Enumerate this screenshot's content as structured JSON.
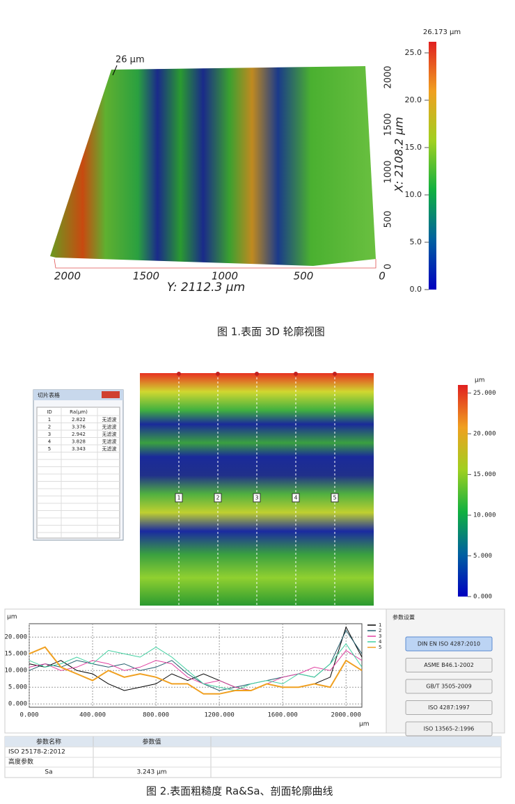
{
  "figure1": {
    "surface_label": "26 µm",
    "y_axis_ticks": [
      2000,
      1500,
      1000,
      500,
      0
    ],
    "y_axis_title": "Y: 2112.3 µm",
    "x_axis_ticks": [
      0,
      500,
      1000,
      1500,
      2000
    ],
    "x_axis_title": "X: 2108.2 µm",
    "colorbar": {
      "title": "26.173 µm",
      "lim": [
        0,
        26.173
      ],
      "ticks": [
        {
          "value": 0,
          "label": "0.0"
        },
        {
          "value": 5,
          "label": "5.0"
        },
        {
          "value": 10,
          "label": "10.0"
        },
        {
          "value": 15,
          "label": "15.0"
        },
        {
          "value": 20,
          "label": "20.0"
        },
        {
          "value": 25,
          "label": "25.0"
        }
      ]
    },
    "caption": "图 1.表面 3D 轮廓视图"
  },
  "figure2": {
    "slice_table": {
      "title": "切片表格",
      "columns": [
        "ID",
        "Ra(µm)"
      ],
      "rows": [
        [
          1,
          2.822,
          "无滤波"
        ],
        [
          2,
          3.376,
          "无滤波"
        ],
        [
          3,
          2.942,
          "无滤波"
        ],
        [
          4,
          3.828,
          "无滤波"
        ],
        [
          5,
          3.343,
          "无滤波"
        ]
      ]
    },
    "profile_labels": [
      1,
      2,
      3,
      4,
      5
    ],
    "colorbar": {
      "unit": "µm",
      "lim": [
        0,
        26
      ],
      "ticks": [
        {
          "value": 0,
          "label": "0.000"
        },
        {
          "value": 5,
          "label": "5.000"
        },
        {
          "value": 10,
          "label": "10.000"
        },
        {
          "value": 15,
          "label": "15.000"
        },
        {
          "value": 20,
          "label": "20.000"
        },
        {
          "value": 25,
          "label": "25.000"
        }
      ]
    },
    "settings": {
      "title": "参数设置",
      "buttons": [
        "DIN EN ISO 4287:2010",
        "ASME B46.1-2002",
        "GB/T 3505-2009",
        "ISO 4287:1997",
        "ISO 13565-2:1996"
      ]
    },
    "param_table": {
      "columns": [
        "参数名称",
        "参数值"
      ],
      "rows": [
        [
          "ISO 25178-2:2012"
        ],
        [
          "高度参数"
        ],
        [
          "Sa",
          "3.243 µm"
        ]
      ]
    },
    "caption": "图 2.表面粗糙度 Ra&Sa、剖面轮廓曲线"
  },
  "chart_data": {
    "type": "line",
    "y_unit": "µm",
    "x_unit": "µm",
    "grid": true,
    "legend": "upper right",
    "x": [
      0,
      100,
      200,
      300,
      400,
      500,
      600,
      700,
      800,
      900,
      1000,
      1100,
      1200,
      1300,
      1400,
      1500,
      1600,
      1700,
      1800,
      1900,
      2000,
      2100
    ],
    "series": [
      {
        "name": "1",
        "color": "#000000",
        "values": [
          12,
          11,
          13,
          10,
          9,
          6,
          4,
          5,
          6,
          9,
          7,
          9,
          7,
          5,
          4,
          6,
          5,
          5,
          6,
          8,
          23,
          14
        ]
      },
      {
        "name": "2",
        "color": "#1f5a6a",
        "values": [
          10,
          12,
          11,
          13,
          12,
          11,
          12,
          10,
          11,
          13,
          9,
          6,
          4,
          5,
          6,
          7,
          8,
          9,
          8,
          12,
          22,
          15
        ]
      },
      {
        "name": "3",
        "color": "#e040a0",
        "values": [
          11,
          12,
          10,
          11,
          13,
          12,
          10,
          11,
          13,
          12,
          8,
          6,
          7,
          5,
          4,
          6,
          8,
          9,
          11,
          10,
          16,
          13
        ]
      },
      {
        "name": "4",
        "color": "#40d0a0",
        "values": [
          13,
          11,
          12,
          14,
          12,
          16,
          15,
          14,
          17,
          14,
          10,
          6,
          5,
          4,
          6,
          7,
          6,
          9,
          8,
          12,
          18,
          11
        ]
      },
      {
        "name": "5",
        "color": "#f0a020",
        "values": [
          15,
          17,
          11,
          9,
          7,
          10,
          8,
          9,
          8,
          6,
          6,
          3,
          3,
          4,
          4,
          6,
          5,
          5,
          6,
          5,
          13,
          10
        ]
      }
    ],
    "xlim": [
      0,
      2100
    ],
    "ylim": [
      -1,
      24
    ],
    "xticks": [
      {
        "value": 0,
        "label": "0.000"
      },
      {
        "value": 400,
        "label": "400.000"
      },
      {
        "value": 800,
        "label": "800.000"
      },
      {
        "value": 1200,
        "label": "1200.000"
      },
      {
        "value": 1600,
        "label": "1600.000"
      },
      {
        "value": 2000,
        "label": "2000.000"
      }
    ],
    "yticks": [
      {
        "value": 0,
        "label": "0.000"
      },
      {
        "value": 5,
        "label": "5.000"
      },
      {
        "value": 10,
        "label": "10.000"
      },
      {
        "value": 15,
        "label": "15.000"
      },
      {
        "value": 20,
        "label": "20.000"
      }
    ]
  }
}
